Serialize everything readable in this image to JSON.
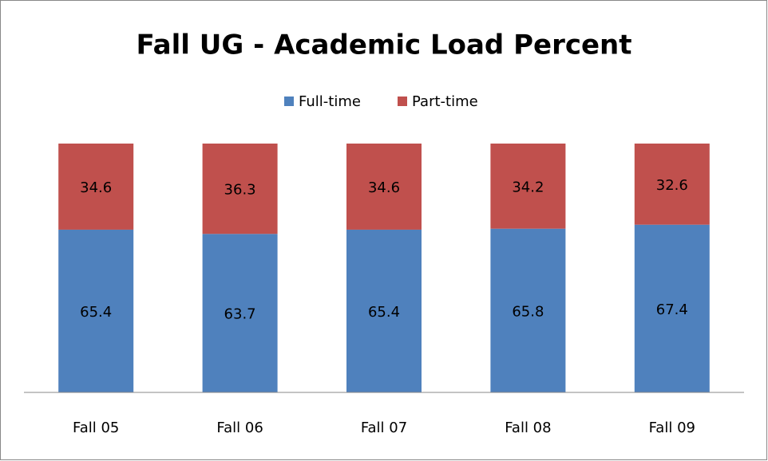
{
  "chart_data": {
    "type": "bar",
    "stacked": true,
    "title": "Fall UG - Academic Load Percent",
    "categories": [
      "Fall 05",
      "Fall 06",
      "Fall 07",
      "Fall 08",
      "Fall 09"
    ],
    "series": [
      {
        "name": "Full-time",
        "color": "#4f81bd",
        "values": [
          65.4,
          63.7,
          65.4,
          65.8,
          67.4
        ]
      },
      {
        "name": "Part-time",
        "color": "#c0504d",
        "values": [
          34.6,
          36.3,
          34.6,
          34.2,
          32.6
        ]
      }
    ],
    "ylim": [
      0,
      100
    ],
    "legend": "top"
  }
}
